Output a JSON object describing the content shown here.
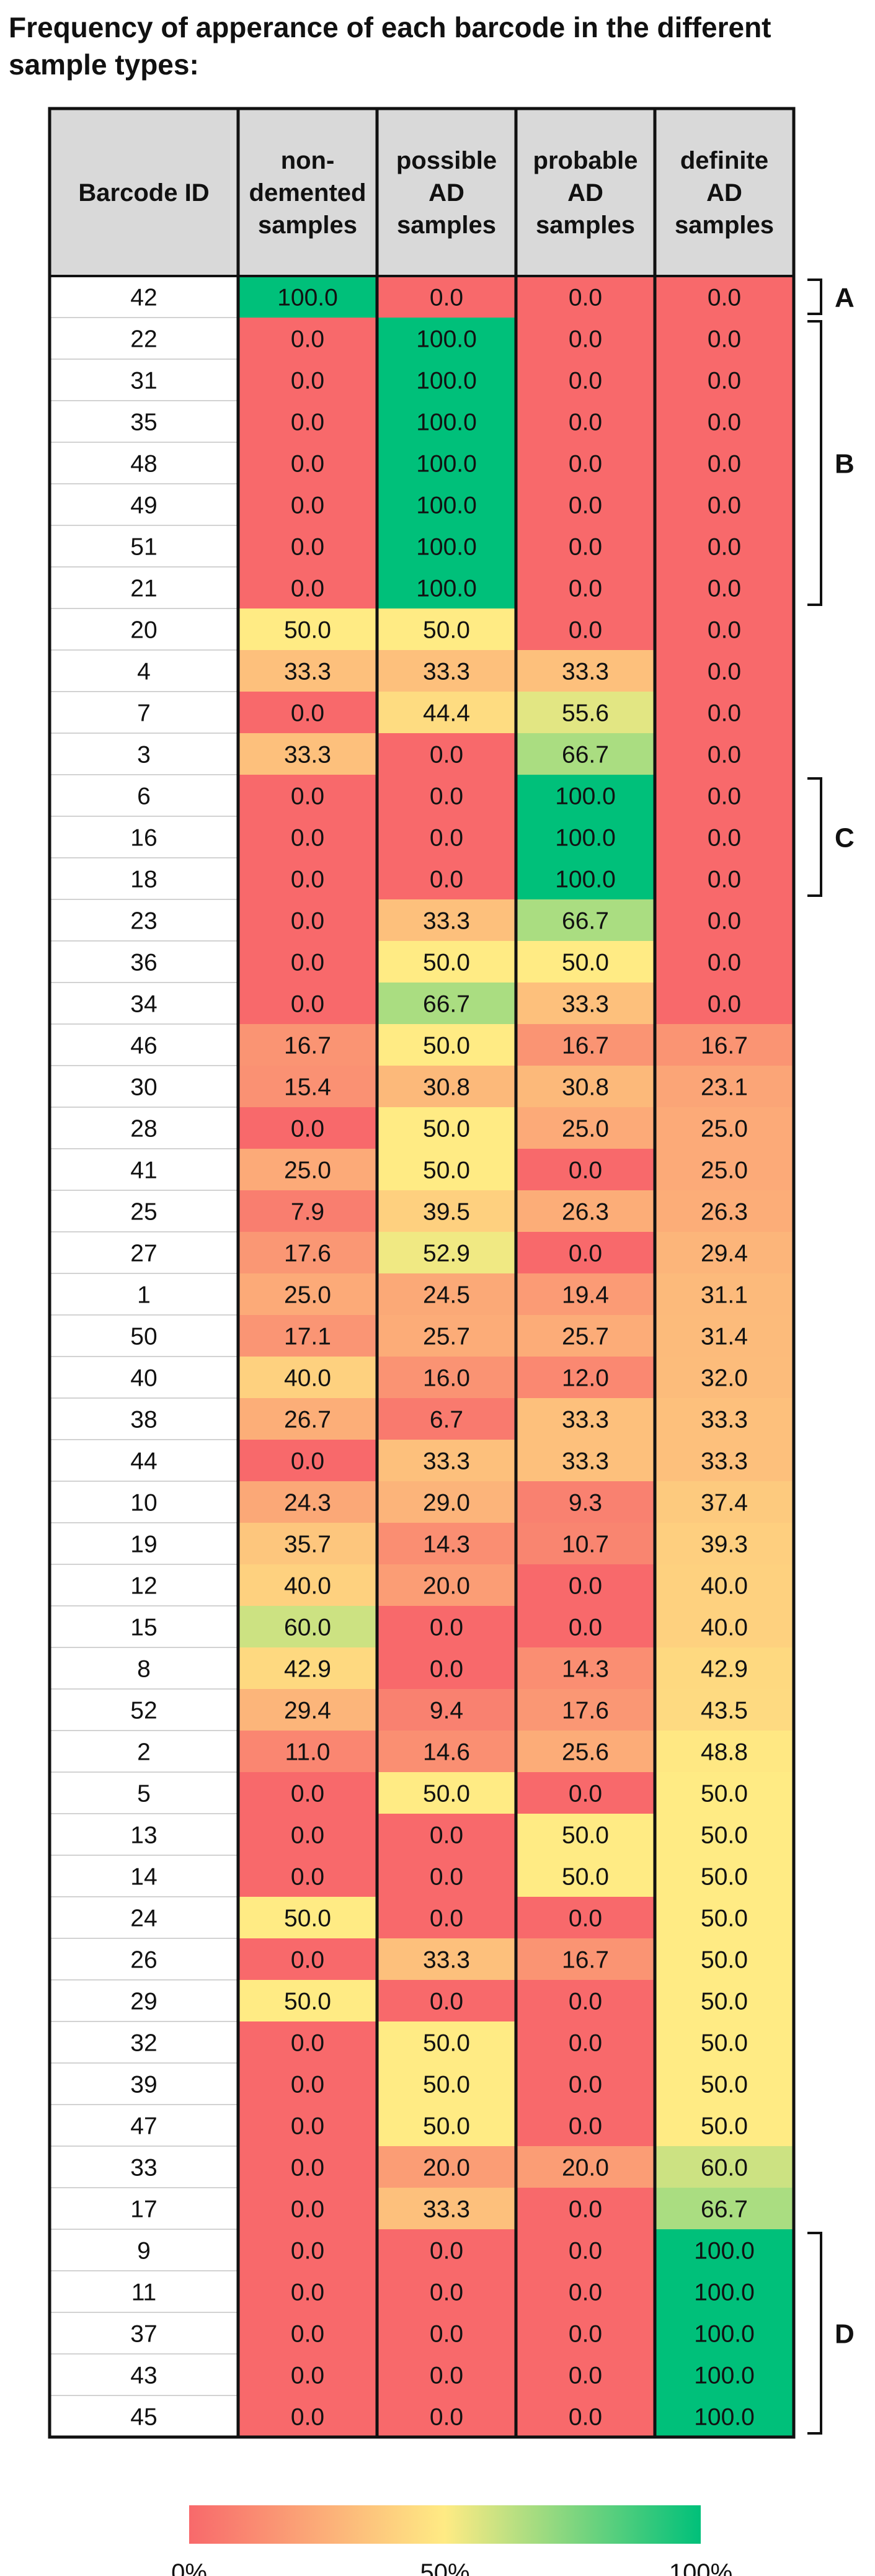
{
  "title": "Frequency of apperance of each barcode in the different sample types:",
  "chart_data": {
    "type": "heatmap",
    "title": "Frequency of apperance of each barcode in the different sample types:",
    "row_header": "Barcode ID",
    "columns": [
      [
        "non-",
        "demented",
        "samples"
      ],
      [
        "possible",
        "AD",
        "samples"
      ],
      [
        "probable",
        "AD",
        "samples"
      ],
      [
        "definite",
        "AD",
        "samples"
      ]
    ],
    "rows": [
      {
        "id": "42",
        "values": [
          100.0,
          0.0,
          0.0,
          0.0
        ]
      },
      {
        "id": "22",
        "values": [
          0.0,
          100.0,
          0.0,
          0.0
        ]
      },
      {
        "id": "31",
        "values": [
          0.0,
          100.0,
          0.0,
          0.0
        ]
      },
      {
        "id": "35",
        "values": [
          0.0,
          100.0,
          0.0,
          0.0
        ]
      },
      {
        "id": "48",
        "values": [
          0.0,
          100.0,
          0.0,
          0.0
        ]
      },
      {
        "id": "49",
        "values": [
          0.0,
          100.0,
          0.0,
          0.0
        ]
      },
      {
        "id": "51",
        "values": [
          0.0,
          100.0,
          0.0,
          0.0
        ]
      },
      {
        "id": "21",
        "values": [
          0.0,
          100.0,
          0.0,
          0.0
        ]
      },
      {
        "id": "20",
        "values": [
          50.0,
          50.0,
          0.0,
          0.0
        ]
      },
      {
        "id": "4",
        "values": [
          33.3,
          33.3,
          33.3,
          0.0
        ]
      },
      {
        "id": "7",
        "values": [
          0.0,
          44.4,
          55.6,
          0.0
        ]
      },
      {
        "id": "3",
        "values": [
          33.3,
          0.0,
          66.7,
          0.0
        ]
      },
      {
        "id": "6",
        "values": [
          0.0,
          0.0,
          100.0,
          0.0
        ]
      },
      {
        "id": "16",
        "values": [
          0.0,
          0.0,
          100.0,
          0.0
        ]
      },
      {
        "id": "18",
        "values": [
          0.0,
          0.0,
          100.0,
          0.0
        ]
      },
      {
        "id": "23",
        "values": [
          0.0,
          33.3,
          66.7,
          0.0
        ]
      },
      {
        "id": "36",
        "values": [
          0.0,
          50.0,
          50.0,
          0.0
        ]
      },
      {
        "id": "34",
        "values": [
          0.0,
          66.7,
          33.3,
          0.0
        ]
      },
      {
        "id": "46",
        "values": [
          16.7,
          50.0,
          16.7,
          16.7
        ]
      },
      {
        "id": "30",
        "values": [
          15.4,
          30.8,
          30.8,
          23.1
        ]
      },
      {
        "id": "28",
        "values": [
          0.0,
          50.0,
          25.0,
          25.0
        ]
      },
      {
        "id": "41",
        "values": [
          25.0,
          50.0,
          0.0,
          25.0
        ]
      },
      {
        "id": "25",
        "values": [
          7.9,
          39.5,
          26.3,
          26.3
        ]
      },
      {
        "id": "27",
        "values": [
          17.6,
          52.9,
          0.0,
          29.4
        ]
      },
      {
        "id": "1",
        "values": [
          25.0,
          24.5,
          19.4,
          31.1
        ]
      },
      {
        "id": "50",
        "values": [
          17.1,
          25.7,
          25.7,
          31.4
        ]
      },
      {
        "id": "40",
        "values": [
          40.0,
          16.0,
          12.0,
          32.0
        ]
      },
      {
        "id": "38",
        "values": [
          26.7,
          6.7,
          33.3,
          33.3
        ]
      },
      {
        "id": "44",
        "values": [
          0.0,
          33.3,
          33.3,
          33.3
        ]
      },
      {
        "id": "10",
        "values": [
          24.3,
          29.0,
          9.3,
          37.4
        ]
      },
      {
        "id": "19",
        "values": [
          35.7,
          14.3,
          10.7,
          39.3
        ]
      },
      {
        "id": "12",
        "values": [
          40.0,
          20.0,
          0.0,
          40.0
        ]
      },
      {
        "id": "15",
        "values": [
          60.0,
          0.0,
          0.0,
          40.0
        ]
      },
      {
        "id": "8",
        "values": [
          42.9,
          0.0,
          14.3,
          42.9
        ]
      },
      {
        "id": "52",
        "values": [
          29.4,
          9.4,
          17.6,
          43.5
        ]
      },
      {
        "id": "2",
        "values": [
          11.0,
          14.6,
          25.6,
          48.8
        ]
      },
      {
        "id": "5",
        "values": [
          0.0,
          50.0,
          0.0,
          50.0
        ]
      },
      {
        "id": "13",
        "values": [
          0.0,
          0.0,
          50.0,
          50.0
        ]
      },
      {
        "id": "14",
        "values": [
          0.0,
          0.0,
          50.0,
          50.0
        ]
      },
      {
        "id": "24",
        "values": [
          50.0,
          0.0,
          0.0,
          50.0
        ]
      },
      {
        "id": "26",
        "values": [
          0.0,
          33.3,
          16.7,
          50.0
        ]
      },
      {
        "id": "29",
        "values": [
          50.0,
          0.0,
          0.0,
          50.0
        ]
      },
      {
        "id": "32",
        "values": [
          0.0,
          50.0,
          0.0,
          50.0
        ]
      },
      {
        "id": "39",
        "values": [
          0.0,
          50.0,
          0.0,
          50.0
        ]
      },
      {
        "id": "47",
        "values": [
          0.0,
          50.0,
          0.0,
          50.0
        ]
      },
      {
        "id": "33",
        "values": [
          0.0,
          20.0,
          20.0,
          60.0
        ]
      },
      {
        "id": "17",
        "values": [
          0.0,
          33.3,
          0.0,
          66.7
        ]
      },
      {
        "id": "9",
        "values": [
          0.0,
          0.0,
          0.0,
          100.0
        ]
      },
      {
        "id": "11",
        "values": [
          0.0,
          0.0,
          0.0,
          100.0
        ]
      },
      {
        "id": "37",
        "values": [
          0.0,
          0.0,
          0.0,
          100.0
        ]
      },
      {
        "id": "43",
        "values": [
          0.0,
          0.0,
          0.0,
          100.0
        ]
      },
      {
        "id": "45",
        "values": [
          0.0,
          0.0,
          0.0,
          100.0
        ]
      }
    ],
    "groups": [
      {
        "label": "A",
        "from_row": 0,
        "to_row": 0
      },
      {
        "label": "B",
        "from_row": 1,
        "to_row": 7
      },
      {
        "label": "C",
        "from_row": 12,
        "to_row": 14
      },
      {
        "label": "D",
        "from_row": 47,
        "to_row": 51
      }
    ],
    "color_scale": {
      "stops": [
        {
          "value": 0,
          "color": "#f8696b"
        },
        {
          "value": 50,
          "color": "#ffeb84"
        },
        {
          "value": 100,
          "color": "#00c07a"
        }
      ],
      "tick_labels": [
        "0%",
        "50%",
        "100%"
      ]
    }
  }
}
